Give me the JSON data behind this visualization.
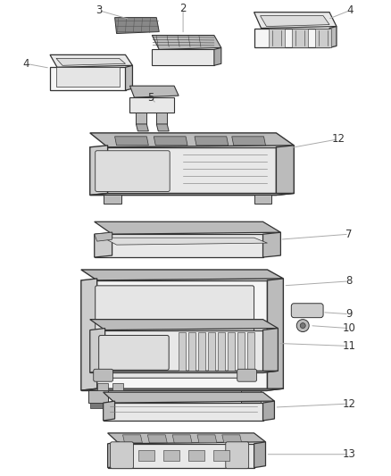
{
  "background_color": "#ffffff",
  "line_color": "#444444",
  "label_color": "#333333",
  "label_fontsize": 8.5,
  "figure_width": 4.38,
  "figure_height": 5.33,
  "dpi": 100
}
